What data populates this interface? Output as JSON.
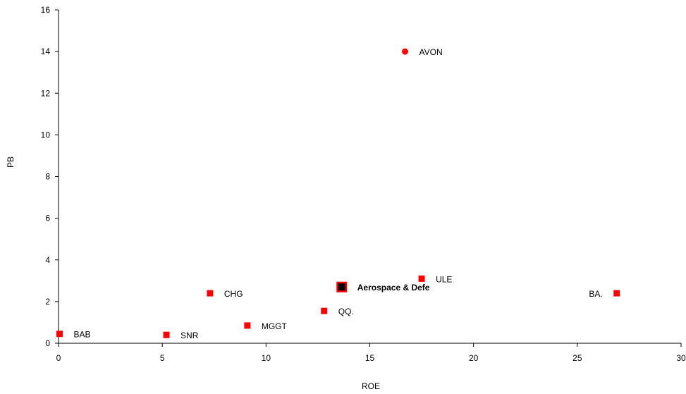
{
  "chart_data": {
    "type": "scatter",
    "xlabel": "ROE",
    "ylabel": "PB",
    "xlim": [
      0,
      30
    ],
    "ylim": [
      0,
      16
    ],
    "xticks": [
      0,
      5,
      10,
      15,
      20,
      25,
      30
    ],
    "yticks": [
      0,
      2,
      4,
      6,
      8,
      10,
      12,
      14,
      16
    ],
    "grid": false,
    "legend": "none",
    "points": [
      {
        "label": "BAB",
        "x": 0.05,
        "y": 0.45,
        "marker": "square",
        "color": "#ff0000",
        "label_side": "right"
      },
      {
        "label": "SNR",
        "x": 5.2,
        "y": 0.4,
        "marker": "square",
        "color": "#ff0000",
        "label_side": "right"
      },
      {
        "label": "CHG",
        "x": 7.3,
        "y": 2.4,
        "marker": "square",
        "color": "#ff0000",
        "label_side": "right"
      },
      {
        "label": "MGGT",
        "x": 9.1,
        "y": 0.85,
        "marker": "square",
        "color": "#ff0000",
        "label_side": "right"
      },
      {
        "label": "QQ.",
        "x": 12.8,
        "y": 1.55,
        "marker": "square",
        "color": "#ff0000",
        "label_side": "right"
      },
      {
        "label": "Aerospace & Defe",
        "x": 13.65,
        "y": 2.7,
        "marker": "square-large",
        "color": "#000000",
        "border": "#ff0000",
        "label_side": "right",
        "bold": true
      },
      {
        "label": "AVON",
        "x": 16.7,
        "y": 14.0,
        "marker": "circle",
        "color": "#ff0000",
        "label_side": "right"
      },
      {
        "label": "ULE",
        "x": 17.5,
        "y": 3.1,
        "marker": "square",
        "color": "#ff0000",
        "label_side": "right"
      },
      {
        "label": "BA.",
        "x": 26.9,
        "y": 2.4,
        "marker": "square",
        "color": "#ff0000",
        "label_side": "left"
      }
    ]
  }
}
